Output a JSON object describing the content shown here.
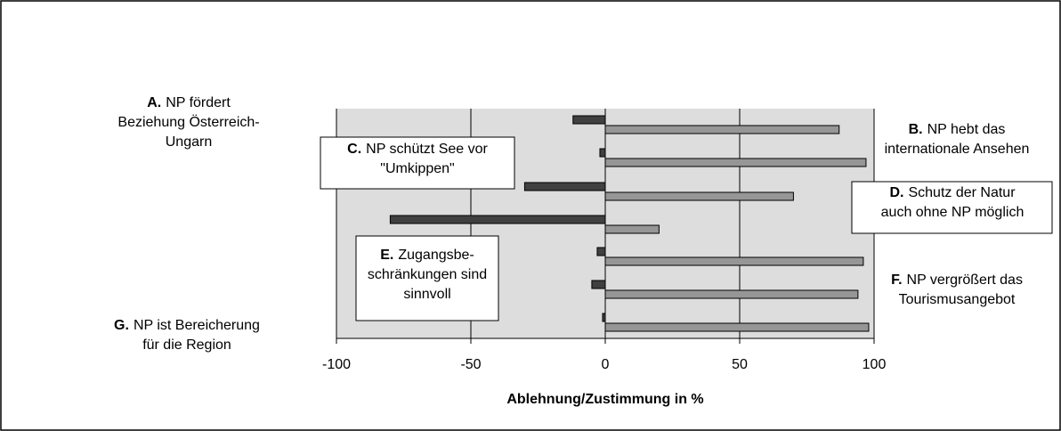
{
  "chart_data": {
    "type": "diverging-bar",
    "series": [
      {
        "color": "#404040",
        "values": [
          -12,
          -2,
          -30,
          -80,
          -3,
          -5,
          -1
        ]
      },
      {
        "color": "#969696",
        "values": [
          87,
          97,
          70,
          20,
          96,
          94,
          98
        ]
      }
    ],
    "annotations": [
      {
        "letter": "A.",
        "lines": [
          "NP fördert",
          "Beziehung Österreich-",
          "Ungarn"
        ]
      },
      {
        "letter": "B.",
        "lines": [
          "NP hebt das",
          "internationale Ansehen"
        ]
      },
      {
        "letter": "C.",
        "lines": [
          "NP schützt See vor",
          "\"Umkippen\""
        ]
      },
      {
        "letter": "D.",
        "lines": [
          "Schutz der Natur",
          "auch ohne NP möglich"
        ]
      },
      {
        "letter": "E.",
        "lines": [
          "Zugangsbe-",
          "schränkungen sind",
          "sinnvoll"
        ]
      },
      {
        "letter": "F.",
        "lines": [
          "NP vergrößert das",
          "Tourismusangebot"
        ]
      },
      {
        "letter": "G.",
        "lines": [
          "NP ist Bereicherung",
          "für die Region"
        ]
      }
    ],
    "xlabel": "Ablehnung/Zustimmung in %",
    "xlim": [
      -100,
      100
    ],
    "xticks": [
      -100,
      -50,
      0,
      50,
      100
    ],
    "grid": true
  }
}
